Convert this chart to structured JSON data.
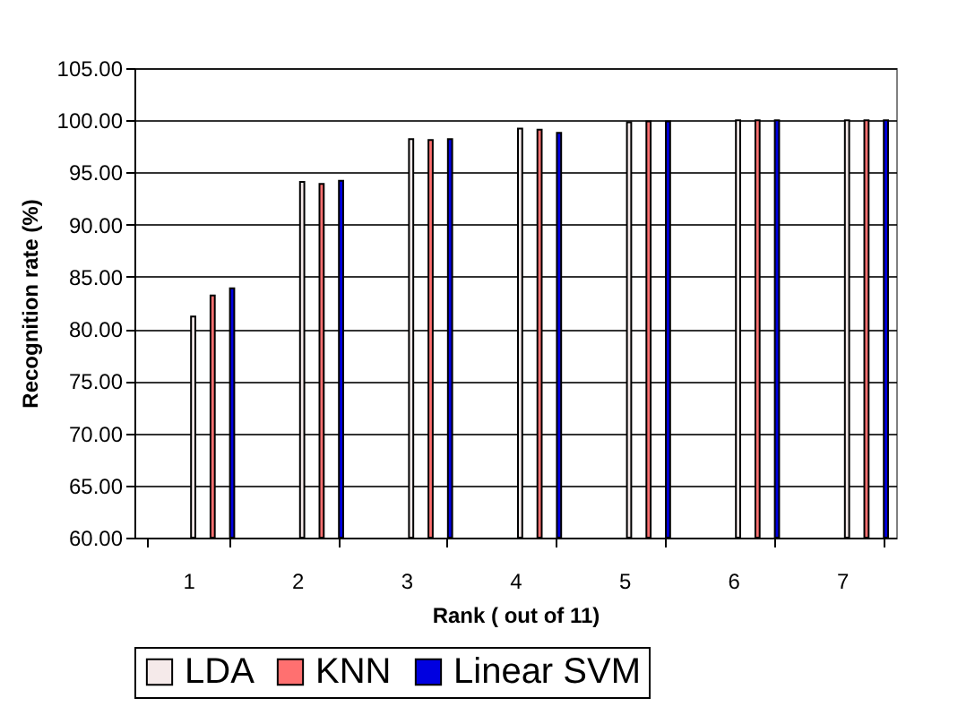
{
  "chart_data": {
    "type": "bar",
    "xlabel": "Rank ( out of 11)",
    "ylabel": "Recognition rate (%)",
    "categories": [
      "1",
      "2",
      "3",
      "4",
      "5",
      "6",
      "7"
    ],
    "series": [
      {
        "name": "LDA",
        "color": "#f5eaea",
        "values": [
          81.2,
          94.1,
          98.2,
          99.2,
          99.8,
          100.0,
          100.0
        ]
      },
      {
        "name": "KNN",
        "color": "#ff7070",
        "values": [
          83.2,
          93.9,
          98.1,
          99.1,
          99.9,
          100.0,
          100.0
        ]
      },
      {
        "name": "Linear SVM",
        "color": "#0000e0",
        "values": [
          83.9,
          94.2,
          98.2,
          98.8,
          99.9,
          100.0,
          100.0
        ]
      }
    ],
    "ylim": [
      60,
      105
    ],
    "yticks": [
      {
        "value": 60,
        "label": "60.00"
      },
      {
        "value": 65,
        "label": "65.00"
      },
      {
        "value": 70,
        "label": "70.00"
      },
      {
        "value": 75,
        "label": "75.00"
      },
      {
        "value": 80,
        "label": "80.00"
      },
      {
        "value": 85,
        "label": "85.00"
      },
      {
        "value": 90,
        "label": "90.00"
      },
      {
        "value": 95,
        "label": "95.00"
      },
      {
        "value": 100,
        "label": "100.00"
      },
      {
        "value": 105,
        "label": "105.00"
      }
    ],
    "grid": "y",
    "legend": "bottom"
  }
}
